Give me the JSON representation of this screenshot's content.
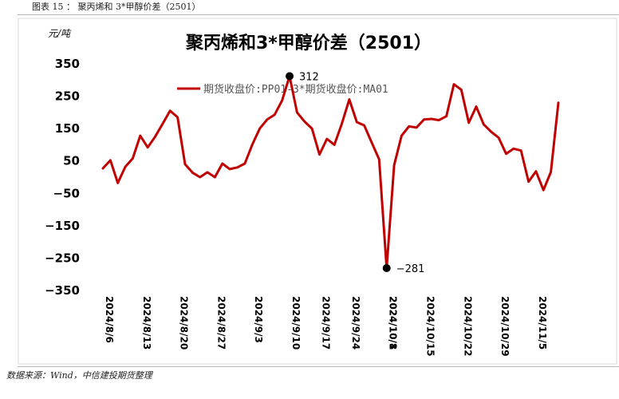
{
  "caption": "图表 15 ： 聚丙烯和 3*甲醇价差（2501）",
  "source": "数据来源：Wind，中信建投期货整理",
  "chart_data": {
    "type": "line",
    "title": "聚丙烯和3*甲醇价差（2501）",
    "unit_label": "元/吨",
    "ylim": [
      -350,
      350
    ],
    "y_ticks": [
      350,
      250,
      150,
      50,
      -50,
      -150,
      -250,
      -350
    ],
    "x_tick_labels": [
      "2024/8/6",
      "2024/8/13",
      "2024/8/20",
      "2024/8/27",
      "2024/9/3",
      "2024/9/10",
      "2024/9/17",
      "2024/9/24",
      "2024/10/1",
      "2024/10/8",
      "2024/10/15",
      "2024/10/22",
      "2024/10/29",
      "2024/11/5"
    ],
    "grid": false,
    "legend_position": "top-center",
    "line_color": "#c00000",
    "series": [
      {
        "name": "期货收盘价:PP01-3*期货收盘价:MA01",
        "x": [
          "2024-08-06",
          "2024-08-07",
          "2024-08-08",
          "2024-08-09",
          "2024-08-12",
          "2024-08-13",
          "2024-08-14",
          "2024-08-15",
          "2024-08-16",
          "2024-08-19",
          "2024-08-20",
          "2024-08-21",
          "2024-08-22",
          "2024-08-23",
          "2024-08-26",
          "2024-08-27",
          "2024-08-28",
          "2024-08-29",
          "2024-08-30",
          "2024-09-02",
          "2024-09-03",
          "2024-09-04",
          "2024-09-05",
          "2024-09-06",
          "2024-09-09",
          "2024-09-10",
          "2024-09-11",
          "2024-09-12",
          "2024-09-13",
          "2024-09-18",
          "2024-09-19",
          "2024-09-20",
          "2024-09-23",
          "2024-09-24",
          "2024-09-25",
          "2024-09-26",
          "2024-09-27",
          "2024-09-30",
          "2024-10-08",
          "2024-10-09",
          "2024-10-10",
          "2024-10-11",
          "2024-10-14",
          "2024-10-15",
          "2024-10-16",
          "2024-10-17",
          "2024-10-18",
          "2024-10-21",
          "2024-10-22",
          "2024-10-23",
          "2024-10-24",
          "2024-10-25",
          "2024-10-28",
          "2024-10-29",
          "2024-10-30",
          "2024-10-31",
          "2024-11-01",
          "2024-11-04",
          "2024-11-05",
          "2024-11-06",
          "2024-11-07",
          "2024-11-08"
        ],
        "y": [
          27,
          52,
          -18,
          32,
          58,
          128,
          92,
          125,
          165,
          205,
          185,
          40,
          14,
          0,
          15,
          0,
          42,
          25,
          30,
          42,
          100,
          150,
          178,
          193,
          237,
          312,
          200,
          172,
          150,
          70,
          118,
          100,
          165,
          240,
          170,
          160,
          107,
          55,
          -281,
          37,
          128,
          157,
          153,
          178,
          180,
          176,
          188,
          287,
          270,
          168,
          218,
          163,
          140,
          122,
          72,
          88,
          82,
          -14,
          18,
          -40,
          16,
          230
        ]
      }
    ],
    "annotations": [
      {
        "label": "312",
        "x": "2024-09-10",
        "y": 312
      },
      {
        "label": "-281",
        "x": "2024-10-08",
        "y": -281
      }
    ]
  }
}
